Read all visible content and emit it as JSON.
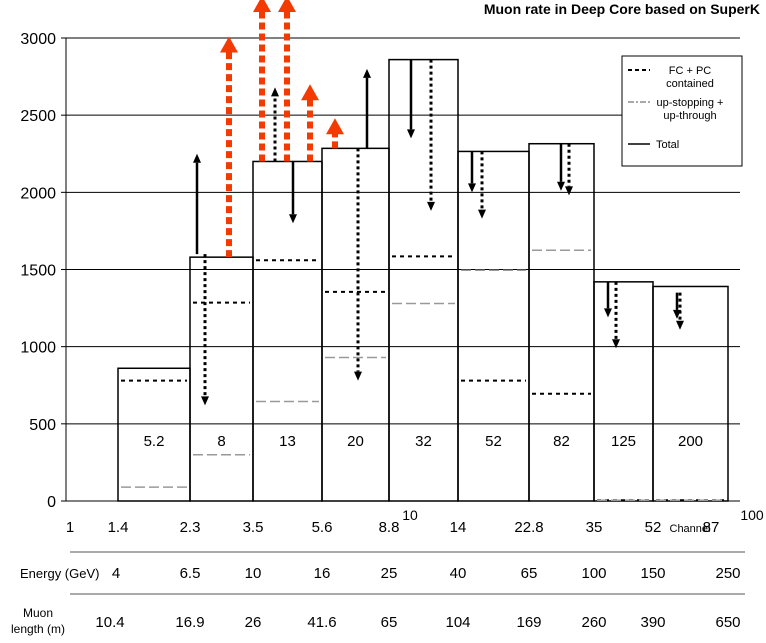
{
  "chart_data": {
    "type": "bar",
    "title": "Muon rate in Deep Core based on SuperK",
    "ylim": [
      0,
      3000
    ],
    "yticks": [
      0,
      500,
      1000,
      1500,
      2000,
      2500,
      3000
    ],
    "grid": true,
    "legend_position": "top-right",
    "legend": [
      {
        "label": "FC + PC contained",
        "lines": [
          "FC + PC",
          "contained"
        ],
        "style": "dotted"
      },
      {
        "label": "up-stopping + up-through",
        "lines": [
          "up-stopping +",
          "up-through"
        ],
        "style": "dash-dot"
      },
      {
        "label": "Total",
        "lines": [
          "Total"
        ],
        "style": "solid"
      }
    ],
    "bins": [
      {
        "edge_low": 1.4,
        "edge_high": 2.3,
        "label": "5.2",
        "total": 860,
        "fc_pc": 780,
        "up": 90
      },
      {
        "edge_low": 2.3,
        "edge_high": 3.5,
        "label": "8",
        "total": 1580,
        "fc_pc": 1285,
        "up": 300
      },
      {
        "edge_low": 3.5,
        "edge_high": 5.6,
        "label": "13",
        "total": 2200,
        "fc_pc": 1560,
        "up": 645
      },
      {
        "edge_low": 5.6,
        "edge_high": 8.8,
        "label": "20",
        "total": 2285,
        "fc_pc": 1355,
        "up": 930
      },
      {
        "edge_low": 8.8,
        "edge_high": 14,
        "label": "32",
        "total": 2860,
        "fc_pc": 1585,
        "up": 1280
      },
      {
        "edge_low": 14,
        "edge_high": 22.8,
        "label": "52",
        "total": 2265,
        "fc_pc": 780,
        "up": 1495
      },
      {
        "edge_low": 22.8,
        "edge_high": 35,
        "label": "82",
        "total": 2315,
        "fc_pc": 695,
        "up": 1625
      },
      {
        "edge_low": 35,
        "edge_high": 52,
        "label": "125",
        "total": 1420,
        "fc_pc": 5,
        "up": 5
      },
      {
        "edge_low": 52,
        "edge_high": 87,
        "label": "200",
        "total": 1390,
        "fc_pc": 5,
        "up": 5
      }
    ],
    "channel_axis": {
      "ticks": [
        "1",
        "1.4",
        "2.3",
        "3.5",
        "5.6",
        "8.8",
        "10",
        "14",
        "22.8",
        "35",
        "52",
        "87",
        "100"
      ],
      "label": "Channel"
    },
    "energy_axis": {
      "label": "Energy (GeV)",
      "ticks": [
        "4",
        "6.5",
        "10",
        "16",
        "25",
        "40",
        "65",
        "100",
        "150",
        "250"
      ]
    },
    "length_axis": {
      "label_lines": [
        "Muon",
        "length (m)"
      ],
      "ticks": [
        "10.4",
        "16.9",
        "26",
        "41.6",
        "65",
        "104",
        "169",
        "260",
        "390",
        "650"
      ]
    },
    "arrows": {
      "solid": [
        {
          "bin": 1,
          "from": 1600,
          "to": 2250
        },
        {
          "bin": 2,
          "from": 2200,
          "to": 1800
        },
        {
          "bin": 3,
          "from": 2285,
          "to": 2800
        },
        {
          "bin": 4,
          "from": 2860,
          "to": 2350
        },
        {
          "bin": 5,
          "from": 2265,
          "to": 2000
        },
        {
          "bin": 6,
          "from": 2315,
          "to": 2010
        },
        {
          "bin": 7,
          "from": 1420,
          "to": 1190
        },
        {
          "bin": 8,
          "from": 1350,
          "to": 1180
        }
      ],
      "dotted": [
        {
          "bin": 1,
          "from": 1600,
          "to": 620
        },
        {
          "bin": 2,
          "from": 2200,
          "to": 2680
        },
        {
          "bin": 3,
          "from": 2285,
          "to": 780
        },
        {
          "bin": 4,
          "from": 2860,
          "to": 1880
        },
        {
          "bin": 5,
          "from": 2265,
          "to": 1830
        },
        {
          "bin": 6,
          "from": 2315,
          "to": 1980
        },
        {
          "bin": 7,
          "from": 1420,
          "to": 990
        },
        {
          "bin": 8,
          "from": 1350,
          "to": 1110
        }
      ],
      "red": [
        {
          "bin": 1,
          "to": 3010
        },
        {
          "bin": 2,
          "to": 3300
        },
        {
          "bin": 2,
          "to": 3300
        },
        {
          "bin": 2,
          "to": 2700
        },
        {
          "bin": 3,
          "to": 2480
        }
      ]
    },
    "colors": {
      "red_arrow": "#f33a00",
      "grid": "#000000",
      "dash": "#999999"
    }
  }
}
